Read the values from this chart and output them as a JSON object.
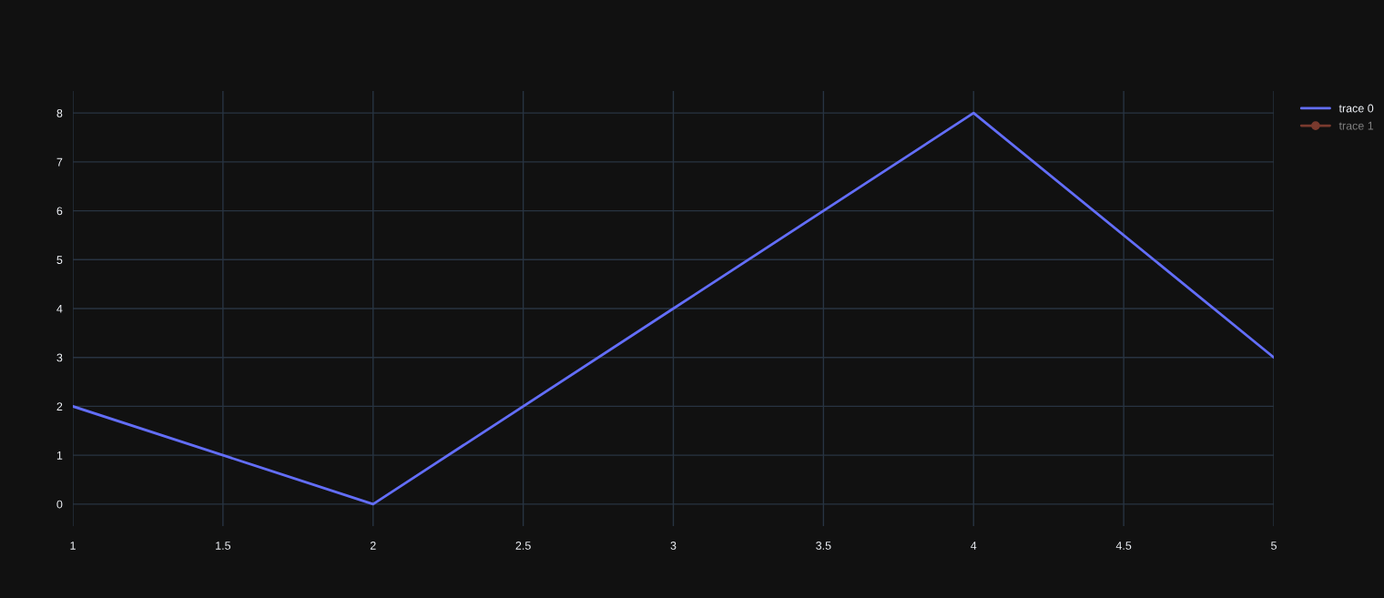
{
  "chart_data": {
    "type": "line",
    "x": [
      1,
      2,
      3,
      4,
      5
    ],
    "series": [
      {
        "name": "trace 0",
        "color": "#636efa",
        "values": [
          2,
          0,
          4,
          8,
          3
        ]
      },
      {
        "name": "trace 1",
        "color": "#7a3a2e",
        "marker": "circle",
        "values": [
          null,
          null,
          null,
          null,
          null
        ]
      }
    ],
    "xlim": [
      1,
      5
    ],
    "xticks": [
      1,
      1.5,
      2,
      2.5,
      3,
      3.5,
      4,
      4.5,
      5
    ],
    "ylim": [
      -0.45,
      8.45
    ],
    "yticks": [
      0,
      1,
      2,
      3,
      4,
      5,
      6,
      7,
      8
    ],
    "grid": true,
    "legend": "top right"
  }
}
